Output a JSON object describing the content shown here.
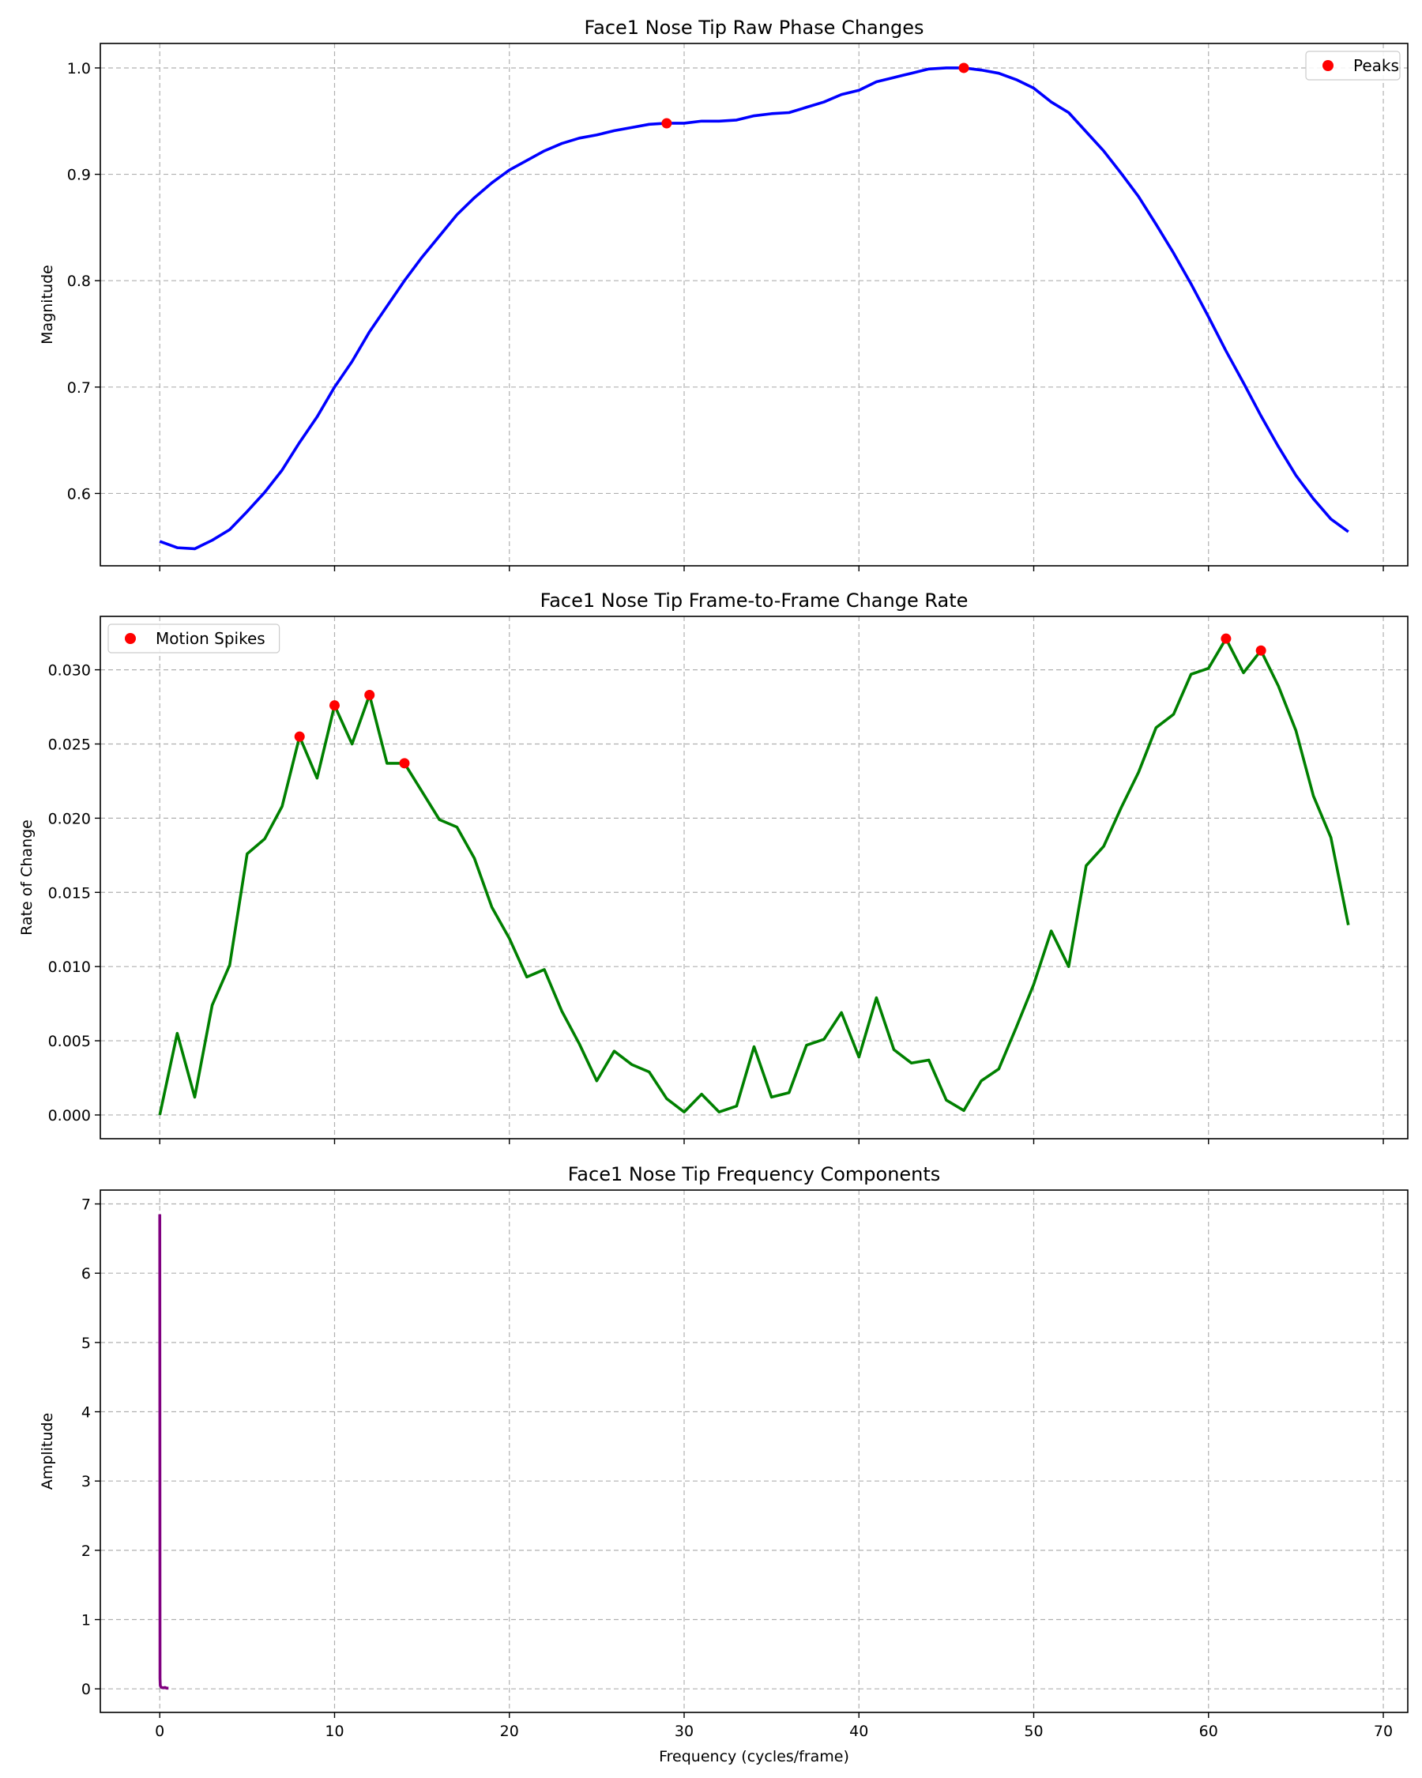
{
  "chart_data": [
    {
      "type": "line",
      "title": "Face1 Nose Tip Raw Phase Changes",
      "xlabel": "",
      "ylabel": "Magnitude",
      "xlim": [
        -3.4,
        71.4
      ],
      "ylim": [
        0.532,
        1.023
      ],
      "xticks": [
        "0",
        "10",
        "20",
        "30",
        "40",
        "50",
        "60",
        "70"
      ],
      "xtick_values": [
        0,
        10,
        20,
        30,
        40,
        50,
        60,
        70
      ],
      "xtick_labels_visible": false,
      "yticks": [
        "0.6",
        "0.7",
        "0.8",
        "0.9",
        "1.0"
      ],
      "ytick_values": [
        0.6,
        0.7,
        0.8,
        0.9,
        1.0
      ],
      "grid": true,
      "legend": {
        "placement": "top-right",
        "entries": [
          "Peaks"
        ]
      },
      "colors": {
        "line": "#0000ff",
        "markers": "#ff0000"
      },
      "series": [
        {
          "values": [
            0.555,
            0.549,
            0.548,
            0.556,
            0.566,
            0.583,
            0.601,
            0.622,
            0.648,
            0.672,
            0.7,
            0.724,
            0.752,
            0.776,
            0.8,
            0.822,
            0.842,
            0.862,
            0.878,
            0.892,
            0.904,
            0.913,
            0.922,
            0.929,
            0.934,
            0.937,
            0.941,
            0.944,
            0.947,
            0.948,
            0.948,
            0.95,
            0.95,
            0.951,
            0.955,
            0.957,
            0.958,
            0.963,
            0.968,
            0.975,
            0.979,
            0.987,
            0.991,
            0.995,
            0.999,
            1.0,
            1.0,
            0.998,
            0.995,
            0.989,
            0.981,
            0.968,
            0.958,
            0.94,
            0.922,
            0.901,
            0.879,
            0.853,
            0.826,
            0.797,
            0.766,
            0.734,
            0.704,
            0.673,
            0.644,
            0.617,
            0.595,
            0.576,
            0.564
          ]
        },
        {
          "name": "Peaks",
          "points": [
            [
              29,
              0.948
            ],
            [
              46,
              1.0
            ]
          ]
        }
      ]
    },
    {
      "type": "line",
      "title": "Face1 Nose Tip Frame-to-Frame Change Rate",
      "xlabel": "",
      "ylabel": "Rate of Change",
      "xlim": [
        -3.4,
        71.4
      ],
      "ylim": [
        -0.0016,
        0.0336
      ],
      "xticks": [
        "0",
        "10",
        "20",
        "30",
        "40",
        "50",
        "60",
        "70"
      ],
      "xtick_values": [
        0,
        10,
        20,
        30,
        40,
        50,
        60,
        70
      ],
      "xtick_labels_visible": false,
      "yticks": [
        "0.000",
        "0.005",
        "0.010",
        "0.015",
        "0.020",
        "0.025",
        "0.030"
      ],
      "ytick_values": [
        0.0,
        0.005,
        0.01,
        0.015,
        0.02,
        0.025,
        0.03
      ],
      "grid": true,
      "legend": {
        "placement": "top-left",
        "entries": [
          "Motion Spikes"
        ]
      },
      "colors": {
        "line": "#008000",
        "markers": "#ff0000"
      },
      "series": [
        {
          "values": [
            0.0,
            0.0055,
            0.0012,
            0.0074,
            0.0101,
            0.0176,
            0.0186,
            0.0208,
            0.0255,
            0.0227,
            0.0276,
            0.025,
            0.0283,
            0.0237,
            0.0237,
            0.0218,
            0.0199,
            0.0194,
            0.0173,
            0.014,
            0.0119,
            0.0093,
            0.0098,
            0.007,
            0.0048,
            0.0023,
            0.0043,
            0.0034,
            0.0029,
            0.0011,
            0.0002,
            0.0014,
            0.0002,
            0.0006,
            0.0046,
            0.0012,
            0.0015,
            0.0047,
            0.0051,
            0.0069,
            0.0039,
            0.0079,
            0.0044,
            0.0035,
            0.0037,
            0.001,
            0.0003,
            0.0023,
            0.0031,
            0.0059,
            0.0088,
            0.0124,
            0.01,
            0.0168,
            0.0181,
            0.0207,
            0.0231,
            0.0261,
            0.027,
            0.0297,
            0.0301,
            0.0321,
            0.0298,
            0.0313,
            0.0289,
            0.0259,
            0.0215,
            0.0187,
            0.0128
          ]
        },
        {
          "name": "Motion Spikes",
          "points": [
            [
              8,
              0.0255
            ],
            [
              10,
              0.0276
            ],
            [
              12,
              0.0283
            ],
            [
              14,
              0.0237
            ],
            [
              61,
              0.0321
            ],
            [
              63,
              0.0313
            ]
          ]
        }
      ]
    },
    {
      "type": "line",
      "title": "Face1 Nose Tip Frequency Components",
      "xlabel": "Frequency (cycles/frame)",
      "ylabel": "Amplitude",
      "xlim": [
        -3.4,
        71.4
      ],
      "ylim": [
        -0.34,
        7.2
      ],
      "xticks": [
        "0",
        "10",
        "20",
        "30",
        "40",
        "50",
        "60",
        "70"
      ],
      "xtick_values": [
        0,
        10,
        20,
        30,
        40,
        50,
        60,
        70
      ],
      "xtick_labels_visible": true,
      "yticks": [
        "0",
        "1",
        "2",
        "3",
        "4",
        "5",
        "6",
        "7"
      ],
      "ytick_values": [
        0,
        1,
        2,
        3,
        4,
        5,
        6,
        7
      ],
      "grid": true,
      "colors": {
        "line": "#800080"
      },
      "series": [
        {
          "points": [
            [
              0.0,
              6.85
            ],
            [
              0.0145,
              0.15
            ],
            [
              0.029,
              0.05
            ],
            [
              0.058,
              0.03
            ],
            [
              0.1,
              0.02
            ],
            [
              0.2,
              0.015
            ],
            [
              0.3,
              0.02
            ],
            [
              0.4,
              0.01
            ],
            [
              0.5,
              0.01
            ]
          ]
        }
      ]
    }
  ]
}
